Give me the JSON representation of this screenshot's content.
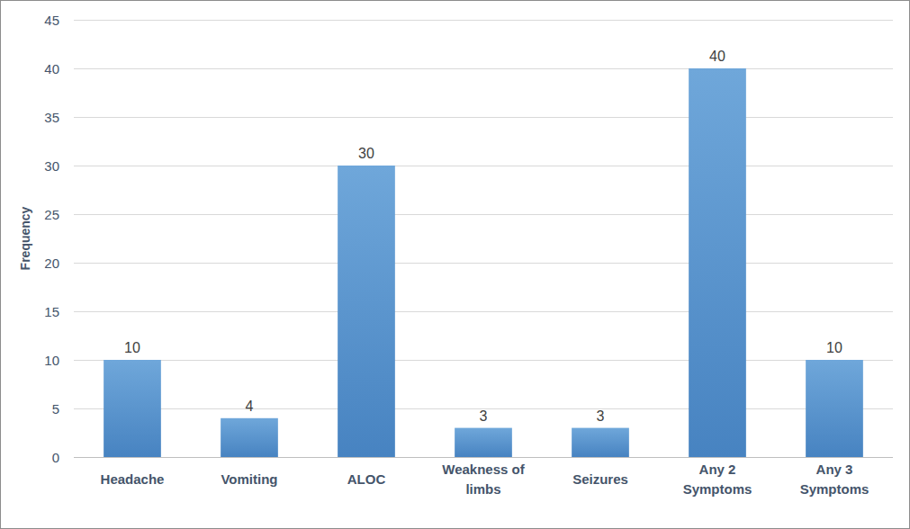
{
  "chart_data": {
    "type": "bar",
    "categories": [
      "Headache",
      "Vomiting",
      "ALOC",
      "Weakness of limbs",
      "Seizures",
      "Any 2 Symptoms",
      "Any 3 Symptoms"
    ],
    "values": [
      10,
      4,
      30,
      3,
      3,
      40,
      10
    ],
    "color": "#5b9bd5",
    "ylabel": "Frequency",
    "ylim": [
      0,
      45
    ],
    "yticks": [
      0,
      5,
      10,
      15,
      20,
      25,
      30,
      35,
      40,
      45
    ],
    "grid": true,
    "data_labels": true
  }
}
